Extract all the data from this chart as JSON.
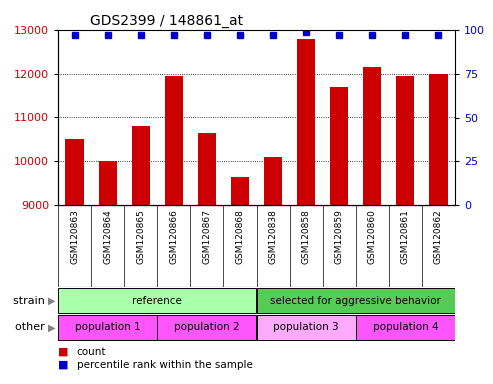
{
  "title": "GDS2399 / 148861_at",
  "samples": [
    "GSM120863",
    "GSM120864",
    "GSM120865",
    "GSM120866",
    "GSM120867",
    "GSM120868",
    "GSM120838",
    "GSM120858",
    "GSM120859",
    "GSM120860",
    "GSM120861",
    "GSM120862"
  ],
  "bar_values": [
    10500,
    10000,
    10800,
    11950,
    10650,
    9650,
    10100,
    12800,
    11700,
    12150,
    11950,
    12000
  ],
  "percentile_values": [
    97,
    97,
    97,
    97,
    97,
    97,
    97,
    99,
    97,
    97,
    97,
    97
  ],
  "ylim_left": [
    9000,
    13000
  ],
  "ylim_right": [
    0,
    100
  ],
  "yticks_left": [
    9000,
    10000,
    11000,
    12000,
    13000
  ],
  "yticks_right": [
    0,
    25,
    50,
    75,
    100
  ],
  "bar_color": "#cc0000",
  "dot_color": "#0000cc",
  "background_color": "#ffffff",
  "strain_groups": [
    {
      "label": "reference",
      "start": 0,
      "end": 6,
      "color": "#aaffaa"
    },
    {
      "label": "selected for aggressive behavior",
      "start": 6,
      "end": 12,
      "color": "#55cc55"
    }
  ],
  "other_groups": [
    {
      "label": "population 1",
      "start": 0,
      "end": 3,
      "color": "#ff55ff"
    },
    {
      "label": "population 2",
      "start": 3,
      "end": 6,
      "color": "#ff55ff"
    },
    {
      "label": "population 3",
      "start": 6,
      "end": 9,
      "color": "#ffaaff"
    },
    {
      "label": "population 4",
      "start": 9,
      "end": 12,
      "color": "#ff55ff"
    }
  ],
  "legend_items": [
    {
      "label": "count",
      "color": "#cc0000"
    },
    {
      "label": "percentile rank within the sample",
      "color": "#0000cc"
    }
  ],
  "strain_label": "strain",
  "other_label": "other",
  "tick_label_color_left": "#cc0000",
  "tick_label_color_right": "#0000cc",
  "xtick_bg": "#cccccc"
}
